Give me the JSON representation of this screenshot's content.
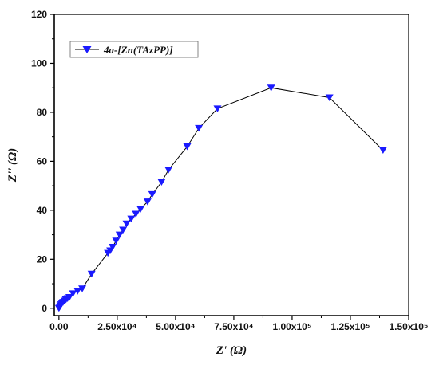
{
  "chart_data": {
    "type": "line",
    "xlabel": "Z' (Ω)",
    "ylabel": "Z'' (Ω)",
    "xlim": [
      -2000,
      150000
    ],
    "ylim": [
      -3,
      120
    ],
    "x_ticks": [
      0,
      25000,
      50000,
      75000,
      100000,
      125000,
      150000
    ],
    "x_tick_labels": [
      "0.00",
      "2.50x10⁴",
      "5.00x10⁴",
      "7.50x10⁴",
      "1.00x10⁵",
      "1.25x10⁵",
      "1.50x10⁵"
    ],
    "y_ticks": [
      0,
      20,
      40,
      60,
      80,
      100,
      120
    ],
    "y_tick_labels": [
      "0",
      "20",
      "40",
      "60",
      "80",
      "100",
      "120"
    ],
    "grid": false,
    "legend_position": "top-left",
    "marker": "triangle-down",
    "series_color": "#1a1aff",
    "series": [
      {
        "name": "4a-[Zn(TAzPP)]",
        "x": [
          0,
          300,
          600,
          900,
          1300,
          1800,
          2400,
          3000,
          3700,
          4500,
          6000,
          8000,
          10000,
          14000,
          21000,
          22000,
          23000,
          24500,
          26000,
          27500,
          29000,
          31000,
          33000,
          35000,
          38000,
          40000,
          44000,
          47000,
          55000,
          60000,
          68000,
          91000,
          116000,
          139000
        ],
        "y": [
          0,
          0.5,
          1,
          1.5,
          2,
          2.5,
          3,
          3.5,
          4,
          4.5,
          6,
          7,
          8,
          14,
          22.5,
          23.5,
          25,
          27.5,
          30,
          32,
          34.5,
          36.5,
          38.5,
          40.5,
          43.5,
          46.5,
          51.5,
          56.5,
          66,
          73.5,
          81.5,
          90,
          86,
          64.5
        ]
      }
    ]
  }
}
